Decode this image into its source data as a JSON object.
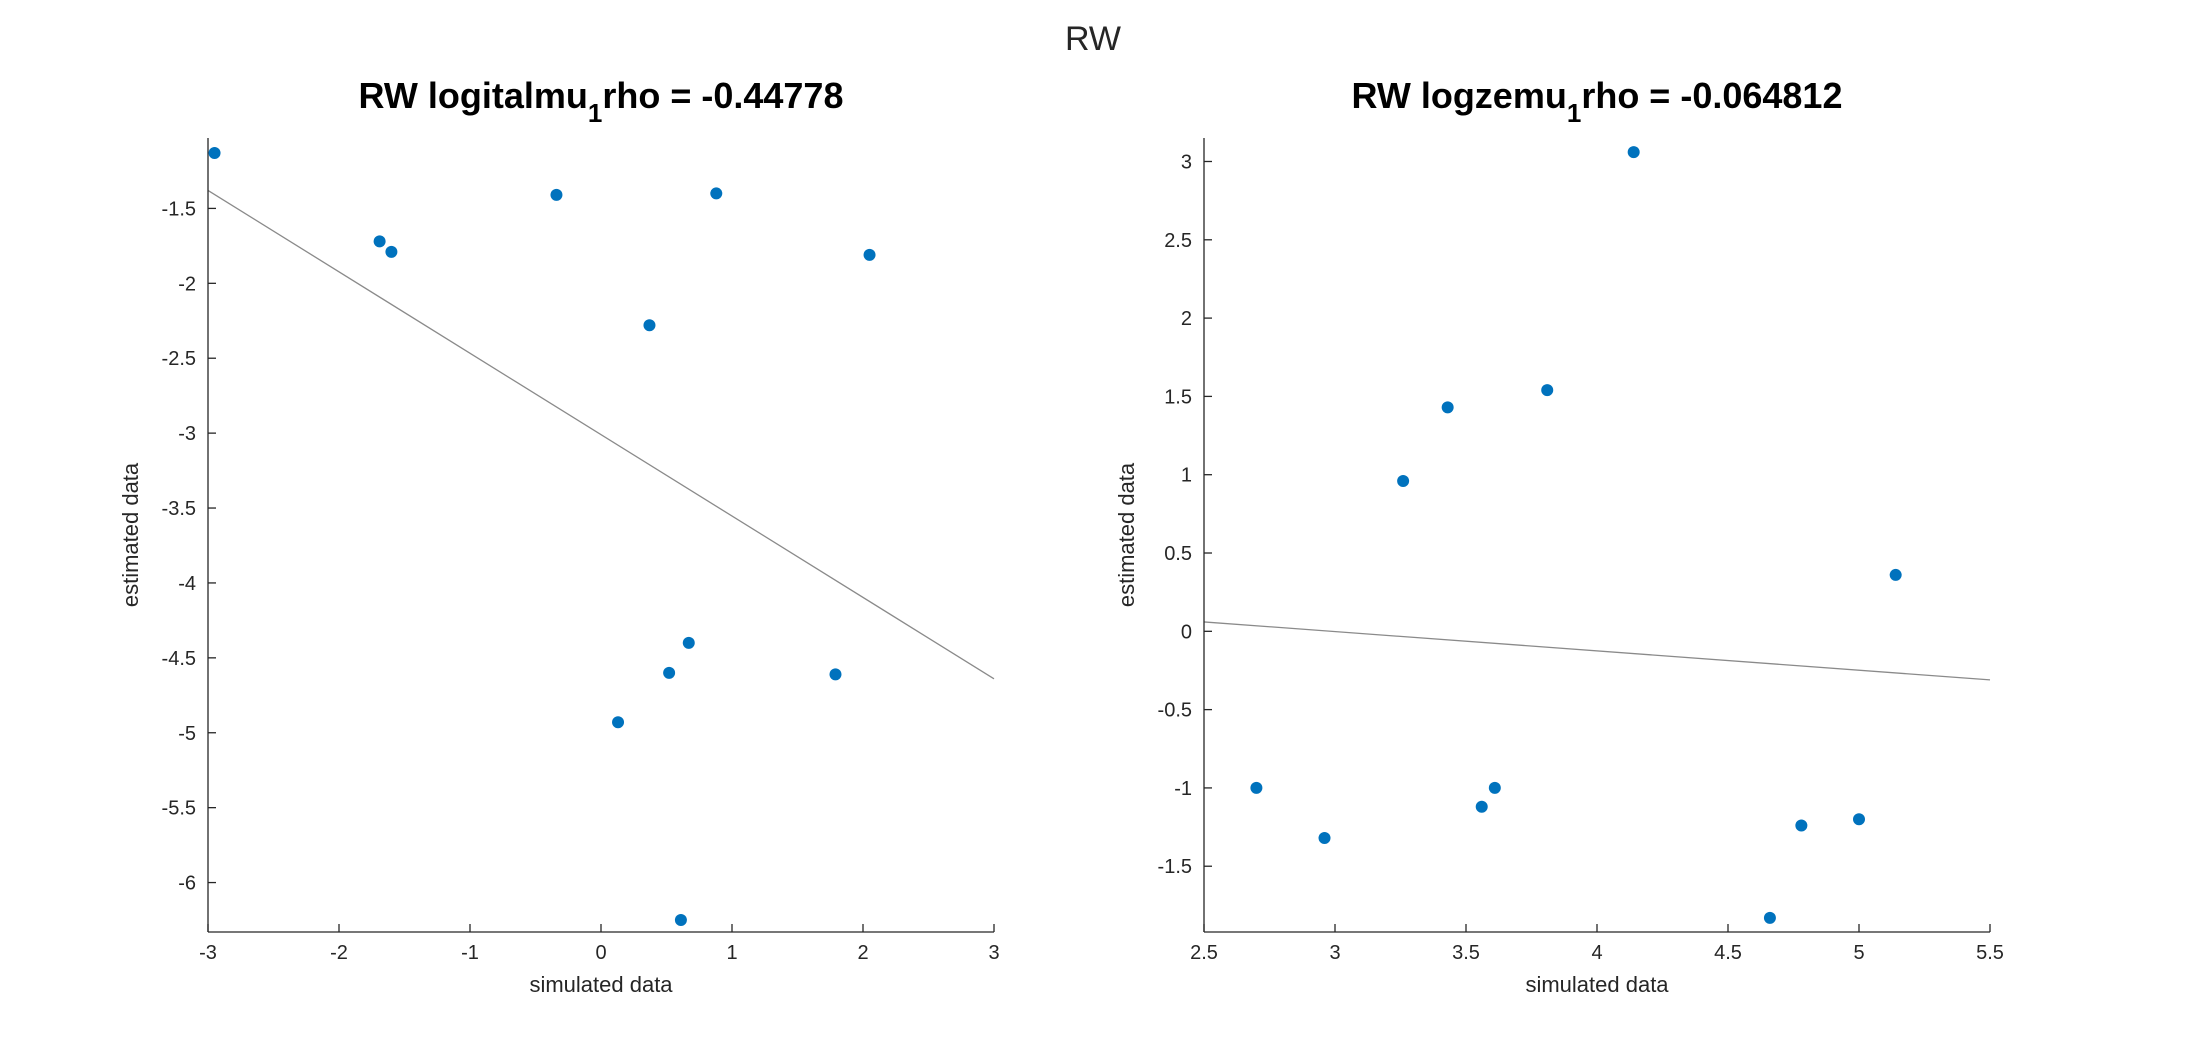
{
  "figure": {
    "title": "RW"
  },
  "chart_data": [
    {
      "type": "scatter",
      "title_main": "RW logitalmu",
      "title_sub": "1",
      "title_rest": "rho = -0.44778",
      "xlabel": "simulated data",
      "ylabel": "estimated data",
      "xlim": [
        -3,
        3
      ],
      "ylim": [
        -6.33,
        -1.03
      ],
      "xticks": [
        -3,
        -2,
        -1,
        0,
        1,
        2,
        3
      ],
      "xtick_labels": [
        "-3",
        "-2",
        "-1",
        "0",
        "1",
        "2",
        "3"
      ],
      "yticks": [
        -1.5,
        -2,
        -2.5,
        -3,
        -3.5,
        -4,
        -4.5,
        -5,
        -5.5,
        -6
      ],
      "ytick_labels": [
        "-1.5",
        "-2",
        "-2.5",
        "-3",
        "-3.5",
        "-4",
        "-4.5",
        "-5",
        "-5.5",
        "-6"
      ],
      "points": [
        {
          "x": -2.95,
          "y": -1.13
        },
        {
          "x": -1.69,
          "y": -1.72
        },
        {
          "x": -1.6,
          "y": -1.79
        },
        {
          "x": -0.34,
          "y": -1.41
        },
        {
          "x": 0.88,
          "y": -1.4
        },
        {
          "x": 2.05,
          "y": -1.81
        },
        {
          "x": 0.37,
          "y": -2.28
        },
        {
          "x": 0.67,
          "y": -4.4
        },
        {
          "x": 0.52,
          "y": -4.6
        },
        {
          "x": 1.79,
          "y": -4.61
        },
        {
          "x": 0.13,
          "y": -4.93
        },
        {
          "x": 0.61,
          "y": -6.25
        }
      ],
      "fit_line": {
        "x": [
          -3,
          3
        ],
        "y": [
          -1.38,
          -4.64
        ]
      },
      "marker_color": "#0072BD",
      "line_color": "#8a8a8a"
    },
    {
      "type": "scatter",
      "title_main": "RW logzemu",
      "title_sub": "1",
      "title_rest": "rho = -0.064812",
      "xlabel": "simulated data",
      "ylabel": "estimated data",
      "xlim": [
        2.5,
        5.5
      ],
      "ylim": [
        -1.92,
        3.15
      ],
      "xticks": [
        2.5,
        3,
        3.5,
        4,
        4.5,
        5,
        5.5
      ],
      "xtick_labels": [
        "2.5",
        "3",
        "3.5",
        "4",
        "4.5",
        "5",
        "5.5"
      ],
      "yticks": [
        3,
        2.5,
        2,
        1.5,
        1,
        0.5,
        0,
        -0.5,
        -1,
        -1.5
      ],
      "ytick_labels": [
        "3",
        "2.5",
        "2",
        "1.5",
        "1",
        "0.5",
        "0",
        "-0.5",
        "-1",
        "-1.5"
      ],
      "points": [
        {
          "x": 4.14,
          "y": 3.06
        },
        {
          "x": 3.81,
          "y": 1.54
        },
        {
          "x": 3.43,
          "y": 1.43
        },
        {
          "x": 3.26,
          "y": 0.96
        },
        {
          "x": 5.14,
          "y": 0.36
        },
        {
          "x": 2.7,
          "y": -1.0
        },
        {
          "x": 3.61,
          "y": -1.0
        },
        {
          "x": 3.56,
          "y": -1.12
        },
        {
          "x": 2.96,
          "y": -1.32
        },
        {
          "x": 5.0,
          "y": -1.2
        },
        {
          "x": 4.78,
          "y": -1.24
        },
        {
          "x": 4.66,
          "y": -1.83
        }
      ],
      "fit_line": {
        "x": [
          2.5,
          5.5
        ],
        "y": [
          0.06,
          -0.31
        ]
      },
      "marker_color": "#0072BD",
      "line_color": "#8a8a8a"
    }
  ]
}
